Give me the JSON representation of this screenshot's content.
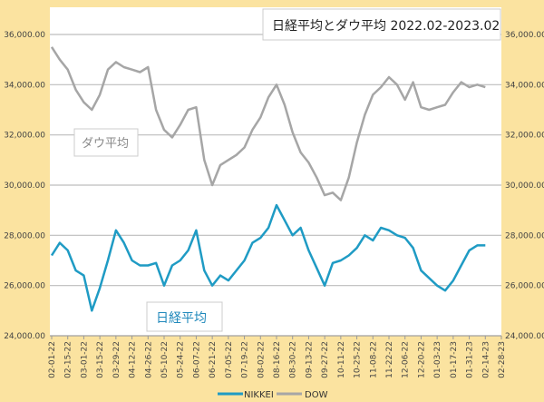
{
  "chart_data": {
    "type": "line",
    "title": "日経平均とダウ平均 2022.02-2023.02",
    "annotations": [
      "ダウ平均",
      "日経平均"
    ],
    "legend": {
      "position": "bottom",
      "entries": [
        "NIKKEI",
        "DOW"
      ]
    },
    "ylim": [
      24000,
      36000
    ],
    "y_ticks": [
      "24,000.00",
      "26,000.00",
      "28,000.00",
      "30,000.00",
      "32,000.00",
      "34,000.00",
      "36,000.00"
    ],
    "y2_ticks": [
      "24,000.00",
      "26,000.00",
      "28,000.00",
      "30,000.00",
      "32,000.00",
      "34,000.00",
      "36,000.00"
    ],
    "x_ticks": [
      "02-01-22",
      "02-15-22",
      "03-01-22",
      "03-15-22",
      "03-29-22",
      "04-12-22",
      "04-26-22",
      "05-10-22",
      "05-24-22",
      "06-07-22",
      "06-21-22",
      "07-05-22",
      "07-19-22",
      "08-02-22",
      "08-16-22",
      "08-30-22",
      "09-13-22",
      "09-27-22",
      "10-11-22",
      "10-25-22",
      "11-08-22",
      "11-22-22",
      "12-06-22",
      "12-20-22",
      "01-03-23",
      "01-17-23",
      "01-31-23",
      "02-14-23",
      "02-28-23"
    ],
    "x_range": [
      "2022-02-01",
      "2023-02-28"
    ],
    "grid": true,
    "x": [
      "2022-02-01",
      "2022-02-08",
      "2022-02-15",
      "2022-02-22",
      "2022-03-01",
      "2022-03-08",
      "2022-03-15",
      "2022-03-22",
      "2022-03-29",
      "2022-04-05",
      "2022-04-12",
      "2022-04-19",
      "2022-04-26",
      "2022-05-03",
      "2022-05-10",
      "2022-05-17",
      "2022-05-24",
      "2022-05-31",
      "2022-06-07",
      "2022-06-14",
      "2022-06-21",
      "2022-06-28",
      "2022-07-05",
      "2022-07-12",
      "2022-07-19",
      "2022-07-26",
      "2022-08-02",
      "2022-08-09",
      "2022-08-16",
      "2022-08-23",
      "2022-08-30",
      "2022-09-06",
      "2022-09-13",
      "2022-09-20",
      "2022-09-27",
      "2022-10-04",
      "2022-10-11",
      "2022-10-18",
      "2022-10-25",
      "2022-11-01",
      "2022-11-08",
      "2022-11-15",
      "2022-11-22",
      "2022-11-29",
      "2022-12-06",
      "2022-12-13",
      "2022-12-20",
      "2022-12-27",
      "2023-01-03",
      "2023-01-10",
      "2023-01-17",
      "2023-01-24",
      "2023-01-31",
      "2023-02-07",
      "2023-02-14"
    ],
    "series": [
      {
        "name": "NIKKEI",
        "color": "#1f9bc4",
        "values": [
          27200,
          27700,
          27400,
          26600,
          26400,
          25000,
          25900,
          27000,
          28200,
          27700,
          27000,
          26800,
          26800,
          26900,
          26000,
          26800,
          27000,
          27400,
          28200,
          26600,
          26000,
          26400,
          26200,
          26600,
          27000,
          27700,
          27900,
          28300,
          29200,
          28600,
          28000,
          28300,
          27400,
          26700,
          26000,
          26900,
          27000,
          27200,
          27500,
          28000,
          27800,
          28300,
          28200,
          28000,
          27900,
          27500,
          26600,
          26300,
          26000,
          25800,
          26200,
          26800,
          27400,
          27600,
          27600
        ]
      },
      {
        "name": "DOW",
        "color": "#a6a6a6",
        "values": [
          35500,
          35000,
          34600,
          33800,
          33300,
          33000,
          33600,
          34600,
          34900,
          34700,
          34600,
          34500,
          34700,
          33000,
          32200,
          31900,
          32400,
          33000,
          33100,
          31000,
          30000,
          30800,
          31000,
          31200,
          31500,
          32200,
          32700,
          33500,
          34000,
          33200,
          32100,
          31300,
          30900,
          30300,
          29600,
          29700,
          29400,
          30300,
          31700,
          32800,
          33600,
          33900,
          34300,
          34000,
          33400,
          34100,
          33100,
          33000,
          33100,
          33200,
          33700,
          34100,
          33900,
          34000,
          33900
        ]
      }
    ]
  }
}
